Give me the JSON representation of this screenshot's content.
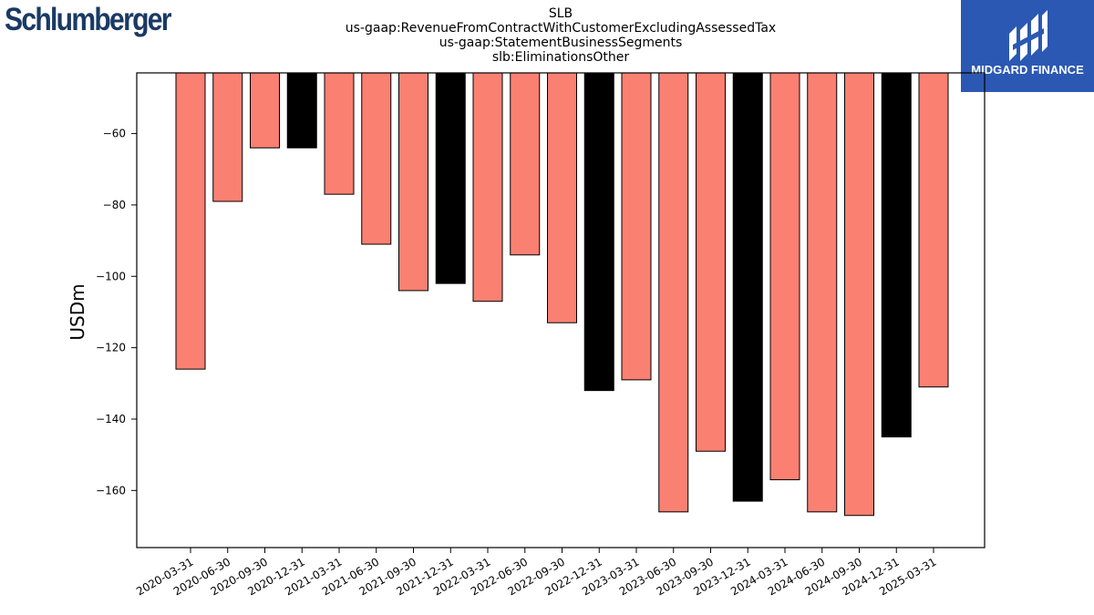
{
  "header": {
    "title_lines": [
      "SLB",
      "us-gaap:RevenueFromContractWithCustomerExcludingAssessedTax",
      "us-gaap:StatementBusinessSegments",
      "slb:EliminationsOther"
    ],
    "left_logo_text": "Schlumberger",
    "right_logo_text": "MIDGARD FINANCE"
  },
  "colors": {
    "quarter_bar": "#fa8072",
    "year_end_bar": "#000000",
    "left_logo": "#1a3a64",
    "right_logo_bg": "#2b58b3"
  },
  "chart_data": {
    "type": "bar",
    "ylabel": "USDm",
    "xlabel": "",
    "ylim": [
      -176,
      -43
    ],
    "yticks": [
      -60,
      -80,
      -100,
      -120,
      -140,
      -160
    ],
    "grid": false,
    "categories": [
      "2020-03-31",
      "2020-06-30",
      "2020-09-30",
      "2020-12-31",
      "2021-03-31",
      "2021-06-30",
      "2021-09-30",
      "2021-12-31",
      "2022-03-31",
      "2022-06-30",
      "2022-09-30",
      "2022-12-31",
      "2023-03-31",
      "2023-06-30",
      "2023-09-30",
      "2023-12-31",
      "2024-03-31",
      "2024-06-30",
      "2024-09-30",
      "2024-12-31",
      "2025-03-31"
    ],
    "values": [
      -126,
      -79,
      -64,
      -64,
      -77,
      -91,
      -104,
      -102,
      -107,
      -94,
      -113,
      -132,
      -129,
      -166,
      -149,
      -163,
      -157,
      -166,
      -167,
      -145,
      -131
    ],
    "highlight": [
      false,
      false,
      false,
      true,
      false,
      false,
      false,
      true,
      false,
      false,
      false,
      true,
      false,
      false,
      false,
      true,
      false,
      false,
      false,
      true,
      false
    ]
  }
}
